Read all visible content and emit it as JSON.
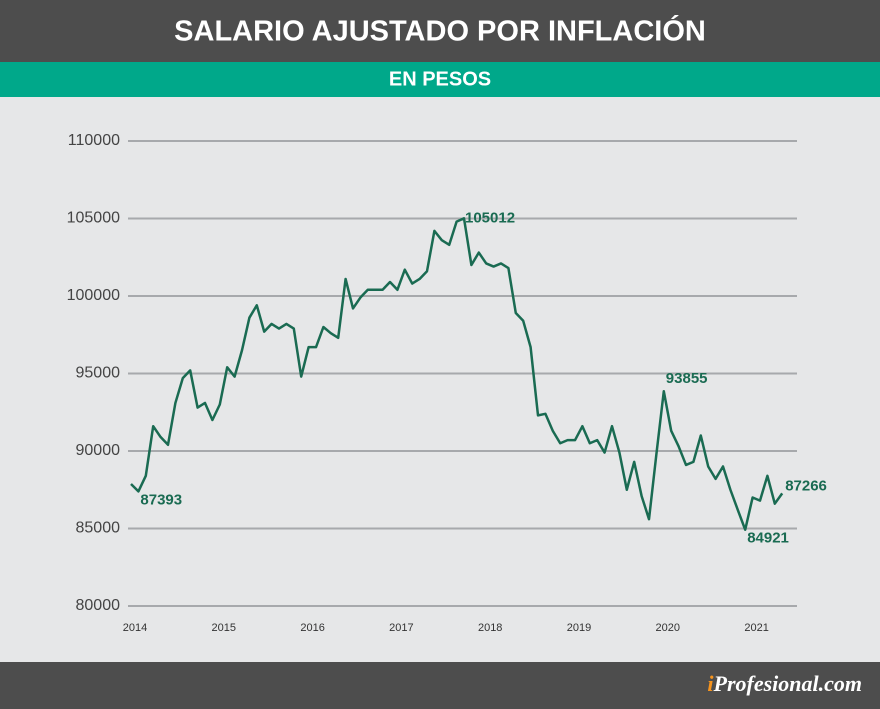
{
  "chart_data": {
    "type": "line",
    "title": "SALARIO AJUSTADO POR INFLACIÓN",
    "subtitle": "EN PESOS",
    "source": [
      "i",
      "Profesional.com"
    ],
    "categories": [
      "2014",
      null,
      null,
      null,
      null,
      null,
      null,
      null,
      null,
      null,
      null,
      null,
      "2015",
      null,
      null,
      null,
      null,
      null,
      null,
      null,
      null,
      null,
      null,
      null,
      "2016",
      null,
      null,
      null,
      null,
      null,
      null,
      null,
      null,
      null,
      null,
      null,
      "2017",
      null,
      null,
      null,
      null,
      null,
      null,
      null,
      null,
      null,
      null,
      null,
      "2018",
      null,
      null,
      null,
      null,
      null,
      null,
      null,
      null,
      null,
      null,
      null,
      "2019",
      null,
      null,
      null,
      null,
      null,
      null,
      null,
      null,
      null,
      null,
      null,
      "2020",
      null,
      null,
      null,
      null,
      null,
      null,
      null,
      null,
      null,
      null,
      null,
      "2021",
      null,
      null,
      null,
      null
    ],
    "series": [
      {
        "name": "Salario",
        "color": "#1a6b52",
        "values": [
          87870,
          87393,
          88400,
          91600,
          90900,
          90400,
          93100,
          94700,
          95200,
          92800,
          93100,
          92000,
          93000,
          95400,
          94800,
          96500,
          98600,
          99400,
          97700,
          98200,
          97900,
          98200,
          97900,
          94800,
          96700,
          96700,
          98000,
          97600,
          97300,
          101100,
          99200,
          99900,
          100400,
          100400,
          100400,
          100900,
          100400,
          101700,
          100800,
          101100,
          101600,
          104200,
          103600,
          103300,
          104800,
          105012,
          102000,
          102800,
          102100,
          101900,
          102100,
          101800,
          98900,
          98400,
          96700,
          92300,
          92400,
          91300,
          90500,
          90700,
          90700,
          91600,
          90500,
          90700,
          89900,
          91600,
          89900,
          87500,
          89300,
          87100,
          85600,
          89800,
          93855,
          91300,
          90300,
          89100,
          89300,
          91000,
          89000,
          88200,
          89000,
          87500,
          86200,
          84921,
          87000,
          86800,
          88400,
          86600,
          87266
        ],
        "value_labels": [
          null,
          "87393",
          null,
          null,
          null,
          null,
          null,
          null,
          null,
          null,
          null,
          null,
          null,
          null,
          null,
          null,
          null,
          null,
          null,
          null,
          null,
          null,
          null,
          null,
          null,
          null,
          null,
          null,
          null,
          null,
          null,
          null,
          null,
          null,
          null,
          null,
          null,
          null,
          null,
          null,
          null,
          null,
          null,
          null,
          null,
          "105012",
          null,
          null,
          null,
          null,
          null,
          null,
          null,
          null,
          null,
          null,
          null,
          null,
          null,
          null,
          null,
          null,
          null,
          null,
          null,
          null,
          null,
          null,
          null,
          null,
          null,
          null,
          "93855",
          null,
          null,
          null,
          null,
          null,
          null,
          null,
          null,
          null,
          null,
          "84921",
          null,
          null,
          null,
          null,
          "87266"
        ]
      }
    ],
    "ylim": [
      80000,
      110000
    ],
    "yticks": [
      80000,
      85000,
      90000,
      95000,
      100000,
      105000,
      110000
    ],
    "grid": true
  }
}
